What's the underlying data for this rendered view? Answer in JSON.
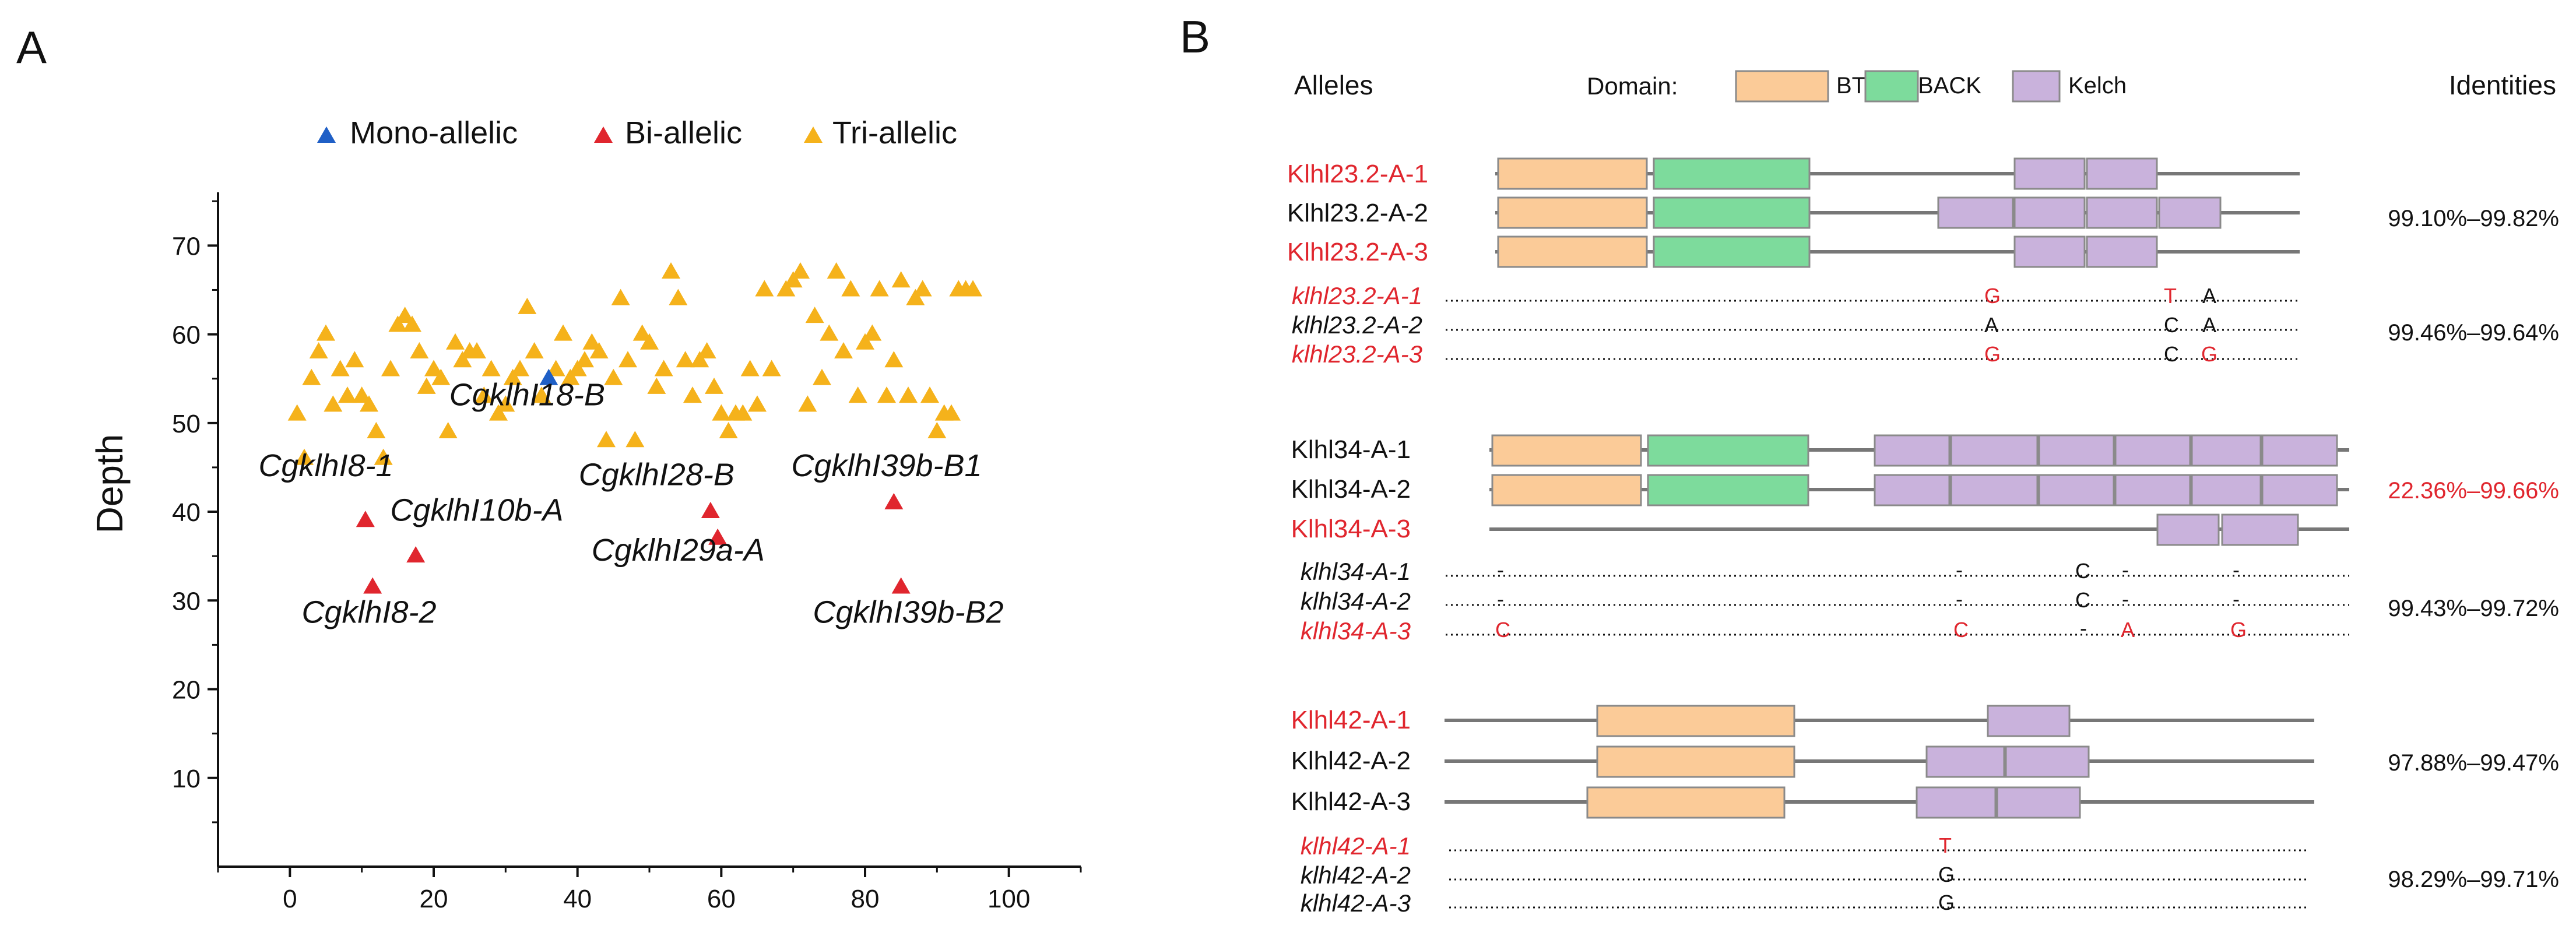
{
  "panel_a": {
    "label": "A",
    "legend": [
      {
        "key": "mono",
        "label": "Mono-allelic",
        "color": "#1f5fc6"
      },
      {
        "key": "bi",
        "label": "Bi-allelic",
        "color": "#e0262e"
      },
      {
        "key": "tri",
        "label": "Tri-allelic",
        "color": "#f5b21b"
      }
    ]
  },
  "chart_data": {
    "type": "scatter",
    "title": "",
    "xlabel": "",
    "ylabel": "Depth",
    "xlim": [
      -10,
      110
    ],
    "ylim": [
      0,
      76
    ],
    "xticks": [
      0,
      20,
      40,
      60,
      80,
      100
    ],
    "yticks": [
      10,
      20,
      30,
      40,
      50,
      60,
      70
    ],
    "legend_position": "top",
    "series": [
      {
        "name": "Tri-allelic",
        "color": "#f5b21b",
        "points": [
          [
            1,
            51
          ],
          [
            2,
            46
          ],
          [
            3,
            55
          ],
          [
            4,
            58
          ],
          [
            5,
            60
          ],
          [
            6,
            52
          ],
          [
            7,
            56
          ],
          [
            8,
            53
          ],
          [
            9,
            57
          ],
          [
            10,
            53
          ],
          [
            11,
            52
          ],
          [
            12,
            49
          ],
          [
            13,
            46
          ],
          [
            14,
            56
          ],
          [
            15,
            61
          ],
          [
            16,
            62
          ],
          [
            17,
            61
          ],
          [
            18,
            58
          ],
          [
            19,
            54
          ],
          [
            20,
            56
          ],
          [
            21,
            55
          ],
          [
            22,
            49
          ],
          [
            23,
            59
          ],
          [
            24,
            57
          ],
          [
            25,
            58
          ],
          [
            26,
            58
          ],
          [
            27,
            53
          ],
          [
            28,
            56
          ],
          [
            29,
            51
          ],
          [
            30,
            52
          ],
          [
            31,
            55
          ],
          [
            32,
            56
          ],
          [
            33,
            63
          ],
          [
            34,
            58
          ],
          [
            35,
            53
          ],
          [
            37,
            56
          ],
          [
            38,
            60
          ],
          [
            39,
            55
          ],
          [
            40,
            56
          ],
          [
            41,
            57
          ],
          [
            42,
            59
          ],
          [
            43,
            58
          ],
          [
            44,
            48
          ],
          [
            45,
            55
          ],
          [
            46,
            64
          ],
          [
            47,
            57
          ],
          [
            48,
            48
          ],
          [
            49,
            60
          ],
          [
            50,
            59
          ],
          [
            51,
            54
          ],
          [
            52,
            56
          ],
          [
            53,
            67
          ],
          [
            54,
            64
          ],
          [
            55,
            57
          ],
          [
            56,
            53
          ],
          [
            57,
            57
          ],
          [
            58,
            58
          ],
          [
            59,
            54
          ],
          [
            60,
            51
          ],
          [
            61,
            49
          ],
          [
            62,
            51
          ],
          [
            63,
            51
          ],
          [
            64,
            56
          ],
          [
            65,
            52
          ],
          [
            66,
            65
          ],
          [
            67,
            56
          ],
          [
            69,
            65
          ],
          [
            70,
            66
          ],
          [
            71,
            67
          ],
          [
            72,
            52
          ],
          [
            73,
            62
          ],
          [
            74,
            55
          ],
          [
            75,
            60
          ],
          [
            76,
            67
          ],
          [
            77,
            58
          ],
          [
            78,
            65
          ],
          [
            79,
            53
          ],
          [
            80,
            59
          ],
          [
            81,
            60
          ],
          [
            82,
            65
          ],
          [
            83,
            53
          ],
          [
            84,
            57
          ],
          [
            85,
            66
          ],
          [
            86,
            53
          ],
          [
            87,
            64
          ],
          [
            88,
            65
          ],
          [
            89,
            53
          ],
          [
            90,
            49
          ],
          [
            91,
            51
          ],
          [
            92,
            51
          ],
          [
            93,
            65
          ],
          [
            94,
            65
          ],
          [
            95,
            65
          ]
        ]
      },
      {
        "name": "Bi-allelic",
        "color": "#e0262e",
        "points": [
          [
            10.5,
            39,
            "CgklhI8-1"
          ],
          [
            11.5,
            31.5,
            "CgklhI8-2"
          ],
          [
            17.5,
            35,
            "CgklhI10b-A"
          ],
          [
            58.5,
            40,
            "CgklhI28-B"
          ],
          [
            59.5,
            37,
            "CgklhI29a-A"
          ],
          [
            84,
            41,
            "CgklhI39b-B1"
          ],
          [
            85,
            31.5,
            "CgklhI39b-B2"
          ]
        ]
      },
      {
        "name": "Mono-allelic",
        "color": "#1f5fc6",
        "points": [
          [
            36,
            55,
            "CgklhI18-B"
          ]
        ]
      }
    ],
    "annotations": [
      {
        "text": "CgklhI8-1",
        "anchor": [
          5,
          44
        ]
      },
      {
        "text": "CgklhI8-2",
        "anchor": [
          11,
          27.5
        ]
      },
      {
        "text": "CgklhI10b-A",
        "anchor": [
          26,
          39
        ]
      },
      {
        "text": "CgklhI18-B",
        "anchor": [
          33,
          52
        ]
      },
      {
        "text": "CgklhI28-B",
        "anchor": [
          51,
          43
        ]
      },
      {
        "text": "CgklhI29a-A",
        "anchor": [
          54,
          34.5
        ]
      },
      {
        "text": "CgklhI39b-B1",
        "anchor": [
          83,
          44
        ]
      },
      {
        "text": "CgklhI39b-B2",
        "anchor": [
          86,
          27.5
        ]
      }
    ]
  },
  "panel_b": {
    "label": "B",
    "header": {
      "alleles": "Alleles",
      "domain_label": "Domain:",
      "identities": "Identities",
      "legend": [
        {
          "label": "BTB",
          "color": "#fbcb98"
        },
        {
          "label": "BACK",
          "color": "#7ddb9c"
        },
        {
          "label": "Kelch",
          "color": "#c9b2dc"
        }
      ]
    },
    "groups": [
      {
        "proteins": [
          {
            "name": "Klhl23.2-A-1",
            "red": true
          },
          {
            "name": "Klhl23.2-A-2",
            "red": false
          },
          {
            "name": "Klhl23.2-A-3",
            "red": true
          }
        ],
        "protein_identity": "99.10%–99.82%",
        "protein_identity_red": false,
        "genes": [
          {
            "name": "klhl23.2-A-1",
            "red": true
          },
          {
            "name": "klhl23.2-A-2",
            "red": false
          },
          {
            "name": "klhl23.2-A-3",
            "red": true
          }
        ],
        "gene_identity": "99.46%–99.64%"
      },
      {
        "proteins": [
          {
            "name": "Klhl34-A-1",
            "red": false
          },
          {
            "name": "Klhl34-A-2",
            "red": false
          },
          {
            "name": "Klhl34-A-3",
            "red": true
          }
        ],
        "protein_identity": "22.36%–99.66%",
        "protein_identity_red": true,
        "genes": [
          {
            "name": "klhl34-A-1",
            "red": false
          },
          {
            "name": "klhl34-A-2",
            "red": false
          },
          {
            "name": "klhl34-A-3",
            "red": true
          }
        ],
        "gene_identity": "99.43%–99.72%"
      },
      {
        "proteins": [
          {
            "name": "Klhl42-A-1",
            "red": true
          },
          {
            "name": "Klhl42-A-2",
            "red": false
          },
          {
            "name": "Klhl42-A-3",
            "red": false
          }
        ],
        "protein_identity": "97.88%–99.47%",
        "protein_identity_red": false,
        "genes": [
          {
            "name": "klhl42-A-1",
            "red": true
          },
          {
            "name": "klhl42-A-2",
            "red": false
          },
          {
            "name": "klhl42-A-3",
            "red": false
          }
        ],
        "gene_identity": "98.29%–99.71%"
      }
    ],
    "gene_marks": [
      [
        "G",
        "T",
        "A"
      ],
      [
        "A",
        "C",
        "A"
      ],
      [
        "G",
        "C",
        "G"
      ],
      [
        "-",
        "-",
        "C",
        "-",
        "-"
      ],
      [
        "-",
        "-",
        "C",
        "-",
        "-"
      ],
      [
        "C",
        "C",
        "-",
        "A",
        "G"
      ],
      [
        "T"
      ],
      [
        "G"
      ],
      [
        "G"
      ]
    ]
  }
}
